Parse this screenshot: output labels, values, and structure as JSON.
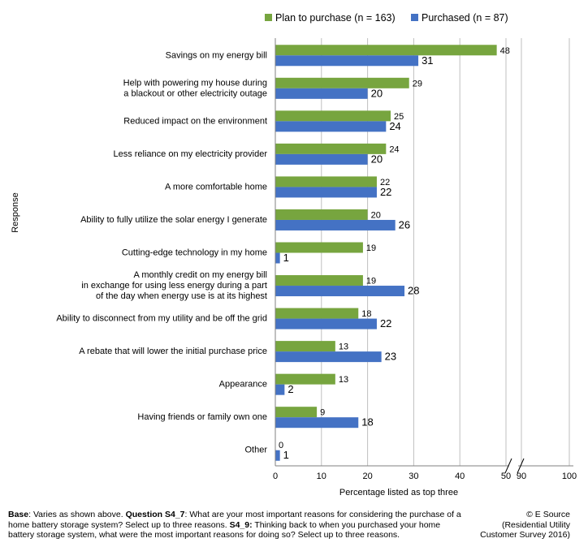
{
  "chart_data": {
    "type": "bar",
    "orientation": "horizontal",
    "ylabel": "Response",
    "xlabel": "Percentage listed as top three",
    "xlim": [
      0,
      100
    ],
    "axis_break_between": [
      50,
      90
    ],
    "ticks_left": [
      0,
      10,
      20,
      30,
      40,
      50
    ],
    "ticks_right": [
      90,
      100
    ],
    "legend_position": "top",
    "categories": [
      [
        "Savings on my energy bill"
      ],
      [
        "Help with powering my house during",
        "a blackout or other electricity outage"
      ],
      [
        "Reduced impact on the environment"
      ],
      [
        "Less reliance on my electricity provider"
      ],
      [
        "A more comfortable home"
      ],
      [
        "Ability to fully utilize the solar energy I generate"
      ],
      [
        "Cutting-edge technology in my home"
      ],
      [
        "A monthly credit on my energy bill",
        "in exchange for using less energy during a part",
        "of the day when energy use is at its highest"
      ],
      [
        "Ability to disconnect from my utility and be off the grid"
      ],
      [
        "A rebate that will lower the initial purchase price"
      ],
      [
        "Appearance"
      ],
      [
        "Having friends or family own one"
      ],
      [
        "Other"
      ]
    ],
    "series": [
      {
        "name": "Plan to purchase (n = 163)",
        "color": "#77A53F",
        "values": [
          48,
          29,
          25,
          24,
          22,
          20,
          19,
          19,
          18,
          13,
          13,
          9,
          0
        ]
      },
      {
        "name": "Purchased (n = 87)",
        "color": "#4472C4",
        "values": [
          31,
          20,
          24,
          20,
          22,
          26,
          1,
          28,
          22,
          23,
          2,
          18,
          1
        ]
      }
    ]
  },
  "footer": {
    "base_label": "Base",
    "base_text": ": Varies as shown above. ",
    "q1_label": "Question S4_7",
    "q1_text": ": What are your most important reasons for considering the purchase of a home battery storage system? Select up to three reasons. ",
    "q2_label": "S4_9:",
    "q2_text": " Thinking back to when you purchased your home battery storage system, what were the most important reasons for doing so? Select up to three reasons.",
    "credit_line1": "© E Source",
    "credit_line2": "(Residential Utility",
    "credit_line3": "Customer Survey 2016)"
  }
}
